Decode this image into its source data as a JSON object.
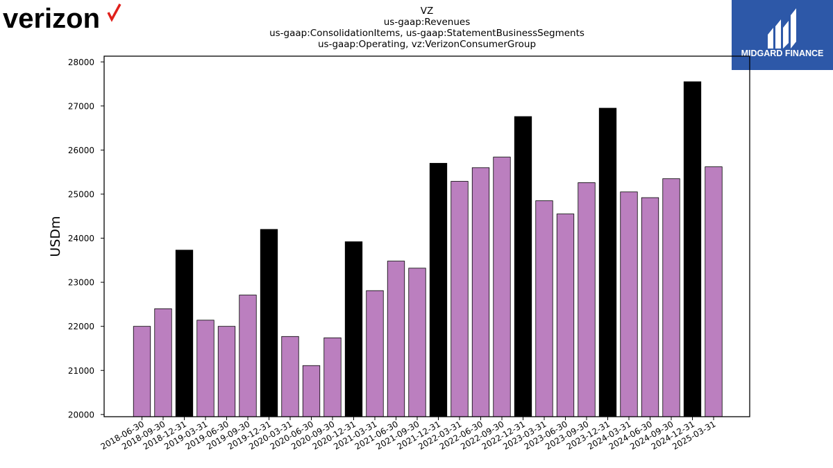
{
  "logos": {
    "left": {
      "text": "verizon",
      "check_color": "#e0201b"
    },
    "right": {
      "text": "MIDGARD FINANCE",
      "bg_color": "#2d58a8"
    }
  },
  "chart_data": {
    "type": "bar",
    "title_lines": [
      "VZ",
      "us-gaap:Revenues",
      "us-gaap:ConsolidationItems, us-gaap:StatementBusinessSegments",
      "us-gaap:Operating, vz:VerizonConsumerGroup"
    ],
    "xlabel": "",
    "ylabel": "USDm",
    "ylim": [
      19950,
      28130
    ],
    "yticks": [
      20000,
      21000,
      22000,
      23000,
      24000,
      25000,
      26000,
      27000,
      28000
    ],
    "grid": false,
    "colors": {
      "quarter": "#bb7fbf",
      "year_end": "#000000",
      "edge": "#000000"
    },
    "categories": [
      "2018-06-30",
      "2018-09-30",
      "2018-12-31",
      "2019-03-31",
      "2019-06-30",
      "2019-09-30",
      "2019-12-31",
      "2020-03-31",
      "2020-06-30",
      "2020-09-30",
      "2020-12-31",
      "2021-03-31",
      "2021-06-30",
      "2021-09-30",
      "2021-12-31",
      "2022-03-31",
      "2022-06-30",
      "2022-09-30",
      "2022-12-31",
      "2023-03-31",
      "2023-06-30",
      "2023-09-30",
      "2023-12-31",
      "2024-03-31",
      "2024-06-30",
      "2024-09-30",
      "2024-12-31",
      "2025-03-31"
    ],
    "values": [
      22000,
      22400,
      23730,
      22140,
      22000,
      22710,
      24200,
      21770,
      21110,
      21740,
      23920,
      22810,
      23480,
      23320,
      25700,
      25290,
      25600,
      25840,
      26760,
      24850,
      24550,
      25260,
      26950,
      25050,
      24920,
      25350,
      27550,
      25620
    ],
    "year_end": [
      false,
      false,
      true,
      false,
      false,
      false,
      true,
      false,
      false,
      false,
      true,
      false,
      false,
      false,
      true,
      false,
      false,
      false,
      true,
      false,
      false,
      false,
      true,
      false,
      false,
      false,
      true,
      false
    ]
  }
}
